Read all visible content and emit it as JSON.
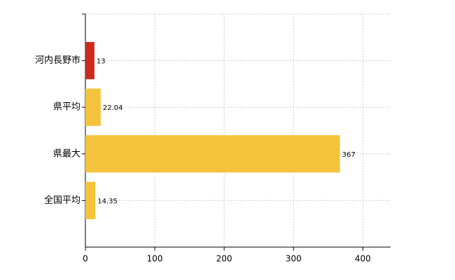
{
  "chart_data": {
    "type": "hbar",
    "categories": [
      "河内長野市",
      "県平均",
      "県最大",
      "全国平均"
    ],
    "values": [
      13,
      22.04,
      367,
      14.35
    ],
    "colors": [
      "#cc2a1e",
      "#f5c33b",
      "#f5c33b",
      "#f5c33b"
    ],
    "xlim": [
      0,
      440
    ],
    "xticks": [
      0,
      100,
      200,
      300,
      400
    ],
    "grid": true
  }
}
